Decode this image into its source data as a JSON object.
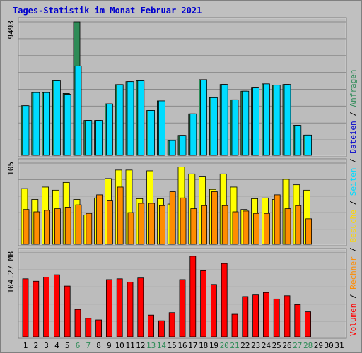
{
  "title": "Tages-Statistik im Monat Februar 2021",
  "chart_data": [
    {
      "type": "bar",
      "panel": "top",
      "ylabel": "9493",
      "ylim": [
        0,
        9493
      ],
      "categories": [
        "1",
        "2",
        "3",
        "4",
        "5",
        "6",
        "7",
        "8",
        "9",
        "10",
        "11",
        "12",
        "13",
        "14",
        "15",
        "16",
        "17",
        "18",
        "19",
        "20",
        "21",
        "22",
        "23",
        "24",
        "25",
        "26",
        "27",
        "28",
        "29",
        "30",
        "31"
      ],
      "weekend_categories": [
        "6",
        "7",
        "13",
        "14",
        "20",
        "21",
        "27",
        "28"
      ],
      "grid": true,
      "series": [
        {
          "name": "Anfragen",
          "color": "#2e8b57",
          "values": [
            3530,
            4460,
            4460,
            5300,
            4400,
            9493,
            2480,
            2480,
            3660,
            5030,
            5240,
            5300,
            3190,
            3870,
            1050,
            1420,
            2950,
            5380,
            4100,
            5040,
            3950,
            4560,
            4840,
            5080,
            4990,
            5040,
            2130,
            1440,
            null,
            null,
            null
          ]
        },
        {
          "name": "Dateien",
          "color": "#00dcff",
          "values": [
            3530,
            4460,
            4460,
            5300,
            4340,
            6360,
            2480,
            2480,
            3660,
            5030,
            5240,
            5300,
            3190,
            3870,
            1050,
            1420,
            2950,
            5380,
            4100,
            5040,
            3950,
            4560,
            4840,
            5080,
            4990,
            5040,
            2130,
            1440,
            null,
            null,
            null
          ]
        }
      ]
    },
    {
      "type": "bar",
      "panel": "middle",
      "ylabel": "105",
      "ylim": [
        0,
        105
      ],
      "categories": [
        "1",
        "2",
        "3",
        "4",
        "5",
        "6",
        "7",
        "8",
        "9",
        "10",
        "11",
        "12",
        "13",
        "14",
        "15",
        "16",
        "17",
        "18",
        "19",
        "20",
        "21",
        "22",
        "23",
        "24",
        "25",
        "26",
        "27",
        "28",
        "29",
        "30",
        "31"
      ],
      "grid": true,
      "series": [
        {
          "name": "Seiten",
          "color": "#ffff00",
          "values": [
            72,
            58,
            74,
            70,
            80,
            58,
            38,
            60,
            85,
            96,
            96,
            59,
            95,
            59,
            52,
            100,
            91,
            88,
            71,
            91,
            74,
            45,
            59,
            60,
            58,
            84,
            77,
            70,
            null,
            null,
            null
          ]
        },
        {
          "name": "Besuche",
          "color": "#ffd700",
          "values": [
            72,
            58,
            74,
            70,
            80,
            58,
            38,
            60,
            85,
            96,
            96,
            59,
            95,
            59,
            52,
            100,
            91,
            88,
            71,
            91,
            74,
            45,
            59,
            60,
            58,
            84,
            77,
            70,
            null,
            null,
            null
          ]
        },
        {
          "name": "Rechner",
          "color": "#ff8c00",
          "values": [
            45,
            42,
            44,
            46,
            48,
            51,
            40,
            64,
            57,
            74,
            41,
            53,
            53,
            50,
            68,
            60,
            46,
            50,
            68,
            50,
            42,
            43,
            40,
            40,
            64,
            46,
            50,
            33,
            null,
            null,
            null
          ]
        }
      ]
    },
    {
      "type": "bar",
      "panel": "bottom",
      "ylabel": "104.27 MB",
      "ylim": [
        0,
        104.27
      ],
      "categories": [
        "1",
        "2",
        "3",
        "4",
        "5",
        "6",
        "7",
        "8",
        "9",
        "10",
        "11",
        "12",
        "13",
        "14",
        "15",
        "16",
        "17",
        "18",
        "19",
        "20",
        "21",
        "22",
        "23",
        "24",
        "25",
        "26",
        "27",
        "28",
        "29",
        "30",
        "31"
      ],
      "grid": true,
      "series": [
        {
          "name": "Volumen",
          "color": "#ff0000",
          "values": [
            72,
            69,
            74,
            77,
            63,
            34,
            23,
            21,
            71,
            72,
            68,
            73,
            27,
            20,
            30,
            71,
            100,
            82,
            65,
            91,
            28,
            50,
            52,
            55,
            47,
            51,
            40,
            31,
            null,
            null,
            null
          ]
        }
      ]
    }
  ],
  "legend": {
    "items": [
      {
        "name": "Volumen",
        "color": "#ff0000"
      },
      {
        "name": "Rechner",
        "color": "#ff8c00"
      },
      {
        "name": "Besuche",
        "color": "#ffd700"
      },
      {
        "name": "Seiten",
        "color": "#00dcff"
      },
      {
        "name": "Dateien",
        "color": "#0000cd"
      },
      {
        "name": "Anfragen",
        "color": "#2e8b57"
      }
    ],
    "separator": " / ",
    "separator_color": "#000000",
    "placement": "right"
  },
  "colors": {
    "background": "#c0c0c0",
    "panel": "#bcbcbc",
    "title": "#0000cd",
    "weekend_label": "#2e8b57",
    "weekday_label": "#000000"
  }
}
